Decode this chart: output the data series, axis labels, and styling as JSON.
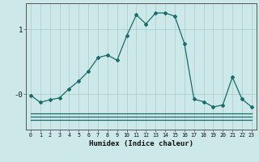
{
  "xlabel": "Humidex (Indice chaleur)",
  "bg_color": "#cce8e8",
  "line_color": "#1a6b6b",
  "grid_color": "#aacccc",
  "x_main": [
    0,
    1,
    2,
    3,
    4,
    5,
    6,
    7,
    8,
    9,
    10,
    11,
    12,
    13,
    14,
    15,
    16,
    17,
    18,
    19,
    20,
    21,
    22,
    23
  ],
  "y_main": [
    -0.02,
    -0.13,
    -0.09,
    -0.06,
    0.08,
    0.2,
    0.35,
    0.56,
    0.6,
    0.52,
    0.9,
    1.22,
    1.08,
    1.25,
    1.25,
    1.2,
    0.78,
    -0.08,
    -0.12,
    -0.2,
    -0.17,
    0.26,
    -0.08,
    -0.2
  ],
  "y_flat1": [
    -0.3,
    -0.3,
    -0.3,
    -0.3,
    -0.3,
    -0.3,
    -0.3,
    -0.3,
    -0.3,
    -0.3,
    -0.3,
    -0.3,
    -0.3,
    -0.3,
    -0.3,
    -0.3,
    -0.3,
    -0.3,
    -0.3,
    -0.3,
    -0.3,
    -0.3,
    -0.3,
    -0.3
  ],
  "y_flat2": [
    -0.35,
    -0.35,
    -0.35,
    -0.35,
    -0.35,
    -0.35,
    -0.35,
    -0.35,
    -0.35,
    -0.35,
    -0.35,
    -0.35,
    -0.35,
    -0.35,
    -0.35,
    -0.35,
    -0.35,
    -0.35,
    -0.35,
    -0.35,
    -0.35,
    -0.35,
    -0.35,
    -0.35
  ],
  "y_flat3": [
    -0.4,
    -0.4,
    -0.4,
    -0.4,
    -0.4,
    -0.4,
    -0.4,
    -0.4,
    -0.4,
    -0.4,
    -0.4,
    -0.4,
    -0.4,
    -0.4,
    -0.4,
    -0.4,
    -0.4,
    -0.4,
    -0.4,
    -0.4,
    -0.4,
    -0.4,
    -0.4,
    -0.4
  ],
  "yticks": [
    0.0,
    1.0
  ],
  "ytick_labels": [
    "-0",
    "1"
  ],
  "ylim": [
    -0.55,
    1.4
  ],
  "xlim": [
    -0.5,
    23.5
  ]
}
